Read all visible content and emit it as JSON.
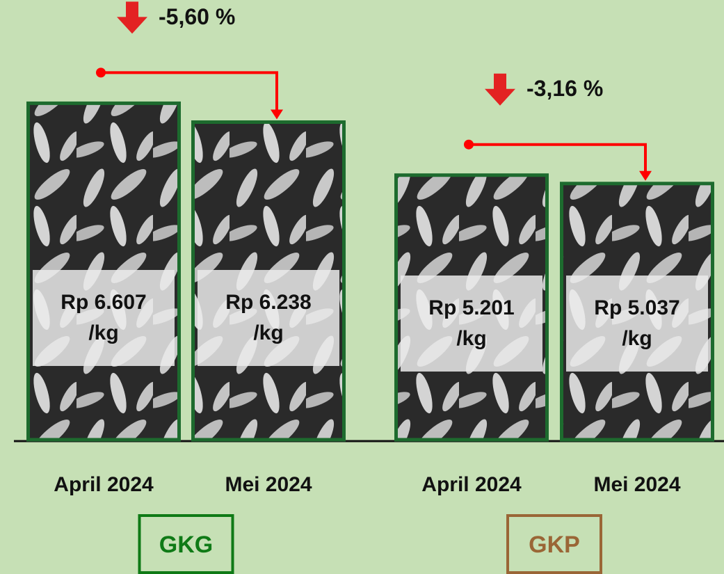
{
  "chart_data": {
    "type": "bar",
    "categories": [
      "April 2024",
      "Mei 2024",
      "April 2024",
      "Mei 2024"
    ],
    "values": [
      6607,
      6238,
      5201,
      5037
    ],
    "value_labels": [
      "Rp 6.607 /kg",
      "Rp 6.238 /kg",
      "Rp 5.201 /kg",
      "Rp 5.037 /kg"
    ],
    "ylim": [
      0,
      8000
    ],
    "groups": [
      {
        "name": "GKG",
        "color": "#0f7a16",
        "change": "-5,60 %"
      },
      {
        "name": "GKP",
        "color": "#9a6636",
        "change": "-3,16 %"
      }
    ],
    "color": "#1d6b2e"
  }
}
